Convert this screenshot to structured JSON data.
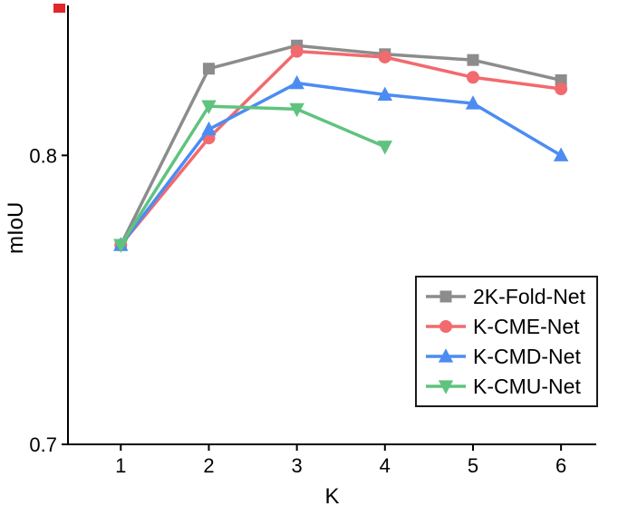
{
  "figure": {
    "background": "#ffffff",
    "axis_color": "#000000"
  },
  "chart_data": {
    "type": "line",
    "title": "",
    "xlabel": "K",
    "ylabel": "mIoU",
    "xlim": [
      0.4,
      6.4
    ],
    "ylim": [
      0.7,
      0.85
    ],
    "xticks": [
      1,
      2,
      3,
      4,
      5,
      6
    ],
    "xtick_labels": [
      "1",
      "2",
      "3",
      "4",
      "5",
      "6"
    ],
    "yticks": [
      0.7,
      0.8
    ],
    "ytick_labels": [
      "0.7",
      "0.8"
    ],
    "grid": false,
    "legend_position": "right-center",
    "series": [
      {
        "name": "2K-Fold-Net",
        "color": "#8c8c8c",
        "marker": "square",
        "x": [
          1,
          2,
          3,
          4,
          5,
          6
        ],
        "values": [
          0.769,
          0.83,
          0.838,
          0.835,
          0.833,
          0.826
        ]
      },
      {
        "name": "K-CME-Net",
        "color": "#f16a6e",
        "marker": "circle",
        "x": [
          1,
          2,
          3,
          4,
          5,
          6
        ],
        "values": [
          0.769,
          0.806,
          0.836,
          0.834,
          0.827,
          0.823
        ]
      },
      {
        "name": "K-CMD-Net",
        "color": "#4c8cf2",
        "marker": "triangle-up",
        "x": [
          1,
          2,
          3,
          4,
          5,
          6
        ],
        "values": [
          0.769,
          0.809,
          0.825,
          0.821,
          0.818,
          0.8
        ]
      },
      {
        "name": "K-CMU-Net",
        "color": "#5fc37e",
        "marker": "triangle-down",
        "x": [
          1,
          2,
          3,
          4
        ],
        "values": [
          0.769,
          0.817,
          0.816,
          0.803
        ]
      }
    ],
    "decorations": {
      "red_corner_mark_color": "#e2262b"
    }
  }
}
